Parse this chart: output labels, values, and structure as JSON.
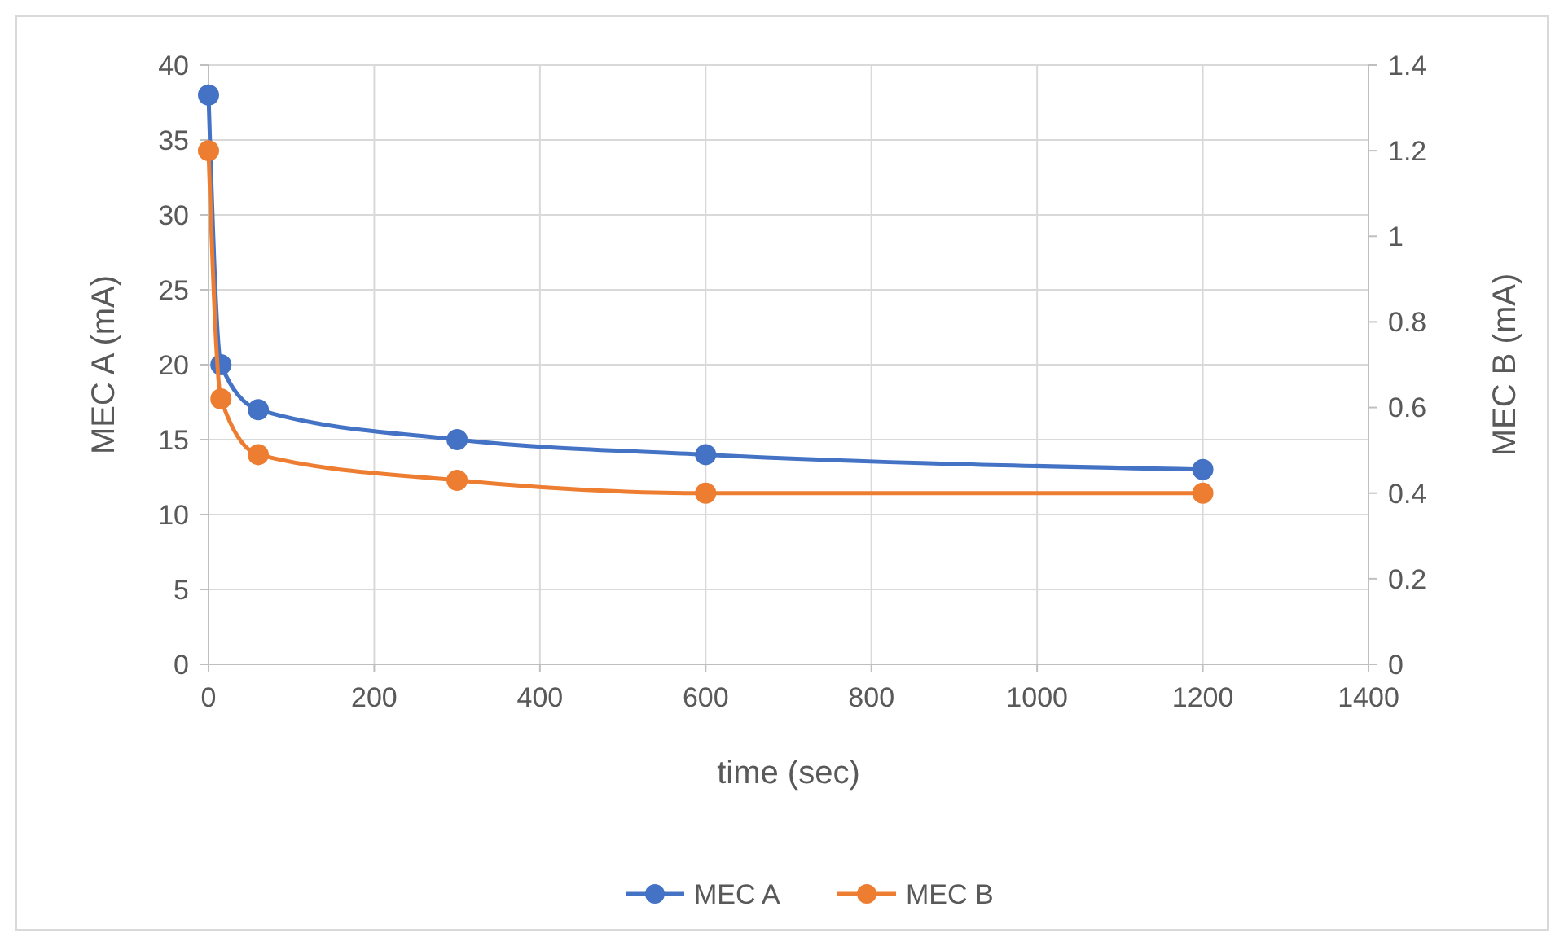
{
  "chart_data": {
    "type": "line",
    "xlabel": "time (sec)",
    "ylabel": "MEC A (mA)",
    "y2label": "MEC B (mA)",
    "x": [
      0,
      15,
      60,
      300,
      600,
      1200
    ],
    "series": [
      {
        "name": "MEC A",
        "color": "#4472c4",
        "values": [
          38,
          20,
          17,
          15,
          14,
          13
        ]
      },
      {
        "name": "MEC B",
        "color": "#ed7d31",
        "axis": "y2",
        "values": [
          1.2,
          0.62,
          0.49,
          0.43,
          0.4,
          0.4
        ]
      }
    ],
    "xlim": [
      0,
      1400
    ],
    "xticks": [
      0,
      200,
      400,
      600,
      800,
      1000,
      1200,
      1400
    ],
    "ylim": [
      0,
      40
    ],
    "yticks": [
      0,
      5,
      10,
      15,
      20,
      25,
      30,
      35,
      40
    ],
    "y2lim": [
      0,
      1.4
    ],
    "y2ticks": [
      0,
      0.2,
      0.4,
      0.6,
      0.8,
      1,
      1.2,
      1.4
    ],
    "grid": true,
    "legend": "bottom",
    "marker": "circle",
    "line_style": "solid"
  }
}
